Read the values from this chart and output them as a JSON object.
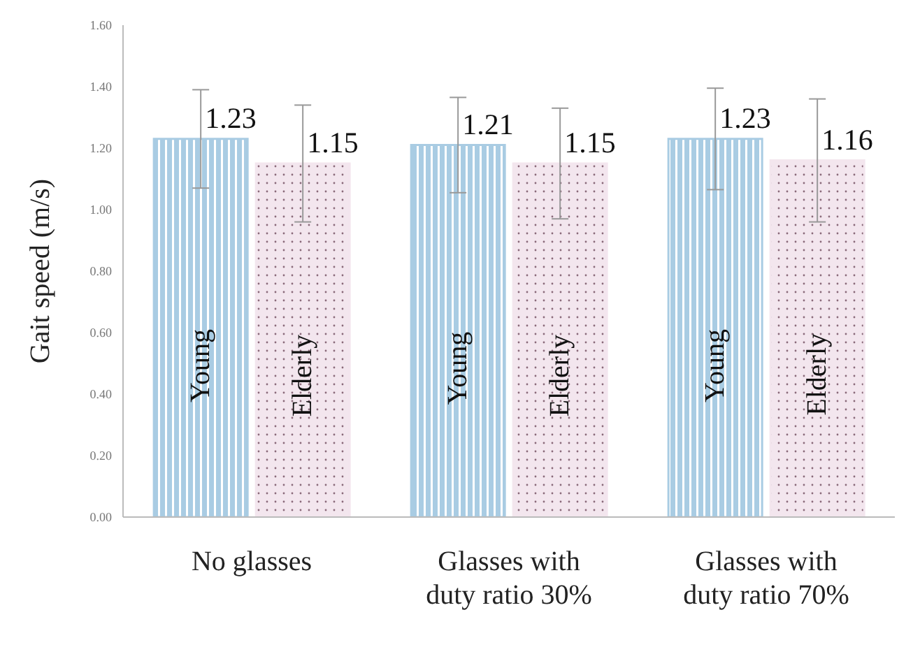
{
  "chart_data": {
    "type": "bar",
    "ylabel": "Gait speed (m/s)",
    "categories": [
      "No glasses",
      "Glasses with duty ratio 30%",
      "Glasses with duty ratio 70%"
    ],
    "series": [
      {
        "name": "Young",
        "color": "#a9cce3",
        "values": [
          1.23,
          1.21,
          1.23
        ],
        "errors": [
          0.16,
          0.155,
          0.165
        ]
      },
      {
        "name": "Elderly",
        "color": "#f3e6ee",
        "values": [
          1.15,
          1.15,
          1.16
        ],
        "errors": [
          0.19,
          0.18,
          0.2
        ]
      }
    ],
    "ylim": [
      0,
      1.6
    ],
    "yticks": [
      {
        "value": 0,
        "label": "0.00"
      },
      {
        "value": 0.2,
        "label": "0.20"
      },
      {
        "value": 0.4,
        "label": "0.40"
      },
      {
        "value": 0.6,
        "label": "0.60"
      },
      {
        "value": 0.8,
        "label": "0.80"
      },
      {
        "value": 1,
        "label": "1.00"
      },
      {
        "value": 1.2,
        "label": "1.20"
      },
      {
        "value": 1.4,
        "label": "1.40"
      },
      {
        "value": 1.6,
        "label": "1.60"
      }
    ],
    "data_labels": true,
    "grid": false,
    "legend": false
  }
}
